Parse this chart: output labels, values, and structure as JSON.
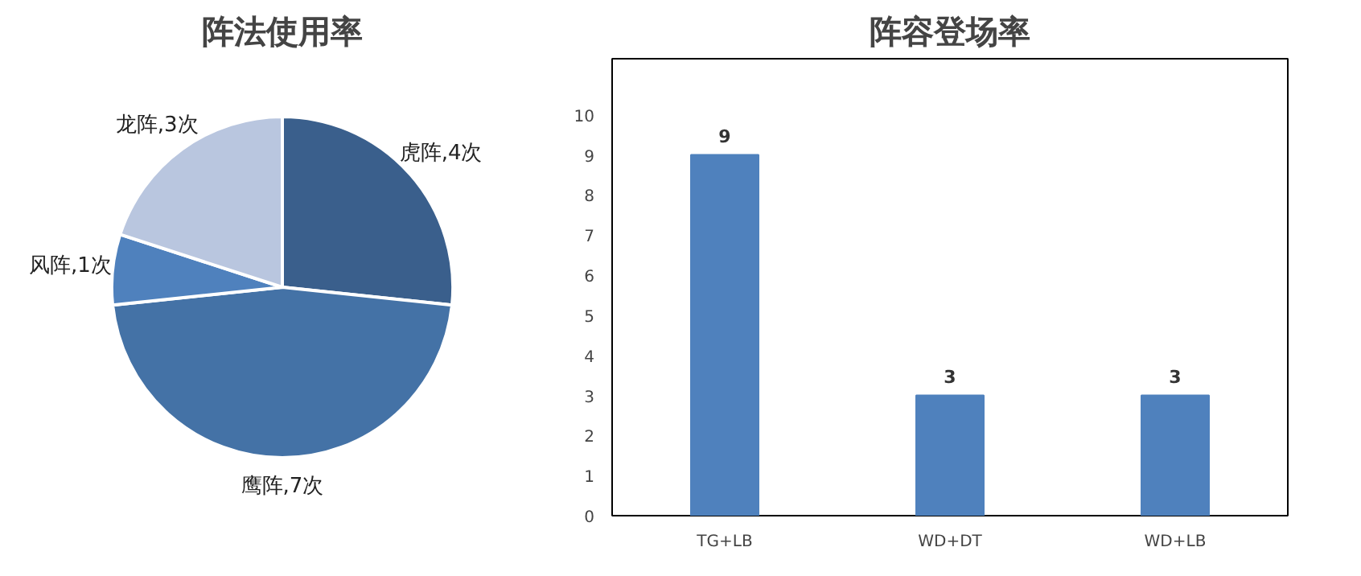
{
  "chart_data": [
    {
      "type": "pie",
      "title": "阵法使用率",
      "categories": [
        "虎阵,4次",
        "鹰阵,7次",
        "风阵,1次",
        "龙阵,3次"
      ],
      "values": [
        4,
        7,
        1,
        3
      ],
      "colors": [
        "#3a5f8c",
        "#4472a6",
        "#4f81bd",
        "#b9c6df"
      ]
    },
    {
      "type": "bar",
      "title": "阵容登场率",
      "categories": [
        "TG+LB",
        "WD+DT",
        "WD+LB"
      ],
      "values": [
        9,
        3,
        3
      ],
      "color": "#4f81bd",
      "ylim": [
        0,
        11.4
      ],
      "yticks": [
        0,
        1,
        2,
        3,
        4,
        5,
        6,
        7,
        8,
        9,
        10
      ],
      "grid": false,
      "data_labels": true
    }
  ]
}
